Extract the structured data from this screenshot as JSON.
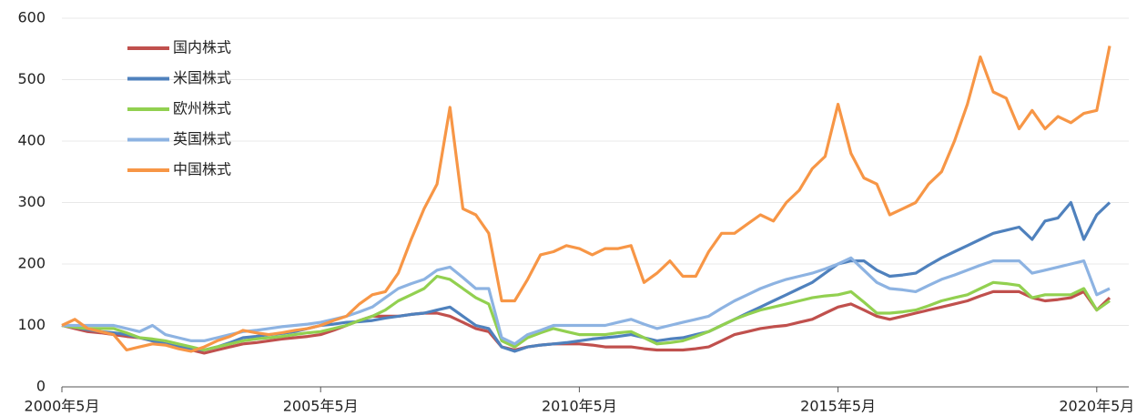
{
  "chart_data": {
    "type": "line",
    "categories": [
      "2000年5月",
      null,
      null,
      null,
      null,
      null,
      null,
      null,
      null,
      null,
      null,
      null,
      null,
      null,
      null,
      null,
      null,
      null,
      null,
      null,
      "2005年5月",
      null,
      null,
      null,
      null,
      null,
      null,
      null,
      null,
      null,
      null,
      null,
      null,
      null,
      null,
      null,
      null,
      null,
      null,
      null,
      "2010年5月",
      null,
      null,
      null,
      null,
      null,
      null,
      null,
      null,
      null,
      null,
      null,
      null,
      null,
      null,
      null,
      null,
      null,
      null,
      null,
      "2015年5月",
      null,
      null,
      null,
      null,
      null,
      null,
      null,
      null,
      null,
      null,
      null,
      null,
      null,
      null,
      null,
      null,
      null,
      null,
      null,
      "2020年5月",
      null
    ],
    "series": [
      {
        "name": "国内株式",
        "color": "#c0504d",
        "values": [
          100,
          95,
          90,
          88,
          85,
          82,
          80,
          75,
          70,
          65,
          60,
          55,
          60,
          65,
          70,
          72,
          75,
          78,
          80,
          82,
          85,
          92,
          100,
          108,
          115,
          115,
          115,
          118,
          120,
          120,
          115,
          105,
          95,
          90,
          65,
          60,
          65,
          68,
          70,
          70,
          70,
          68,
          65,
          65,
          65,
          62,
          60,
          60,
          60,
          62,
          65,
          75,
          85,
          90,
          95,
          98,
          100,
          105,
          110,
          120,
          130,
          135,
          125,
          115,
          110,
          115,
          120,
          125,
          130,
          135,
          140,
          148,
          155,
          155,
          155,
          145,
          140,
          142,
          145,
          155,
          125,
          145
        ]
      },
      {
        "name": "米国株式",
        "color": "#4f81bd",
        "values": [
          100,
          97,
          93,
          90,
          88,
          85,
          80,
          75,
          70,
          65,
          62,
          60,
          65,
          72,
          80,
          82,
          85,
          87,
          90,
          95,
          100,
          102,
          105,
          106,
          108,
          112,
          115,
          118,
          120,
          125,
          130,
          115,
          100,
          95,
          65,
          58,
          65,
          68,
          70,
          72,
          75,
          78,
          80,
          82,
          85,
          80,
          75,
          78,
          80,
          85,
          90,
          100,
          110,
          120,
          130,
          140,
          150,
          160,
          170,
          185,
          200,
          205,
          205,
          190,
          180,
          182,
          185,
          198,
          210,
          220,
          230,
          240,
          250,
          255,
          260,
          240,
          270,
          275,
          300,
          240,
          280,
          300
        ]
      },
      {
        "name": "欧州株式",
        "color": "#92d050",
        "values": [
          100,
          97,
          95,
          95,
          95,
          88,
          80,
          78,
          75,
          70,
          65,
          60,
          65,
          70,
          75,
          78,
          80,
          82,
          85,
          88,
          90,
          95,
          100,
          108,
          115,
          125,
          140,
          150,
          160,
          180,
          175,
          160,
          145,
          135,
          75,
          65,
          80,
          88,
          95,
          90,
          85,
          85,
          85,
          88,
          90,
          80,
          70,
          72,
          75,
          82,
          90,
          100,
          110,
          118,
          125,
          130,
          135,
          140,
          145,
          148,
          150,
          155,
          138,
          120,
          120,
          122,
          125,
          132,
          140,
          145,
          150,
          160,
          170,
          168,
          165,
          145,
          150,
          150,
          150,
          160,
          125,
          140
        ]
      },
      {
        "name": "英国株式",
        "color": "#8db3e2",
        "values": [
          100,
          100,
          100,
          100,
          100,
          95,
          90,
          100,
          85,
          80,
          75,
          75,
          80,
          85,
          90,
          92,
          95,
          98,
          100,
          102,
          105,
          110,
          115,
          122,
          130,
          145,
          160,
          168,
          175,
          190,
          195,
          178,
          160,
          160,
          80,
          70,
          85,
          92,
          100,
          100,
          100,
          100,
          100,
          105,
          110,
          102,
          95,
          100,
          105,
          110,
          115,
          128,
          140,
          150,
          160,
          168,
          175,
          180,
          185,
          192,
          200,
          210,
          190,
          170,
          160,
          158,
          155,
          165,
          175,
          182,
          190,
          198,
          205,
          205,
          205,
          185,
          190,
          195,
          200,
          205,
          150,
          160
        ]
      },
      {
        "name": "中国株式",
        "color": "#f79646",
        "values": [
          100,
          110,
          95,
          90,
          85,
          60,
          65,
          70,
          68,
          62,
          58,
          65,
          75,
          82,
          92,
          88,
          85,
          88,
          92,
          95,
          100,
          108,
          115,
          135,
          150,
          155,
          185,
          240,
          290,
          330,
          455,
          290,
          280,
          250,
          140,
          140,
          175,
          215,
          220,
          230,
          225,
          215,
          225,
          225,
          230,
          170,
          185,
          205,
          180,
          180,
          220,
          250,
          250,
          265,
          280,
          270,
          300,
          320,
          355,
          375,
          460,
          380,
          340,
          330,
          280,
          290,
          300,
          330,
          350,
          400,
          460,
          537,
          480,
          470,
          420,
          450,
          420,
          440,
          430,
          445,
          450,
          555
        ]
      }
    ],
    "ylim": [
      0,
      600
    ],
    "yticks": [
      0,
      100,
      200,
      300,
      400,
      500,
      600
    ],
    "grid": true,
    "legend": "upper left"
  }
}
